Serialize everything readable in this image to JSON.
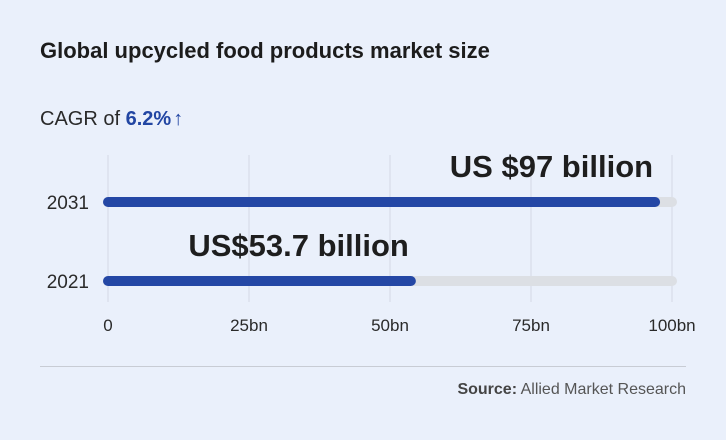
{
  "title": "Global upcycled food products market size",
  "cagr": {
    "prefix": "CAGR of",
    "value": "6.2%",
    "arrow": "↑"
  },
  "source": {
    "label": "Source:",
    "text": "Allied Market Research"
  },
  "colors": {
    "bar": "#2447a5",
    "track": "#dcdfe4",
    "grid": "#d4d9e6",
    "accent": "#2246a3"
  },
  "chart_data": {
    "type": "bar",
    "orientation": "horizontal",
    "categories": [
      "2031",
      "2021"
    ],
    "values": [
      97,
      53.7
    ],
    "value_labels": [
      "US $97 billion",
      "US$53.7 billion"
    ],
    "xlim": [
      0,
      100
    ],
    "xticks": [
      0,
      25,
      50,
      75,
      100
    ],
    "xtick_labels": [
      "0",
      "25bn",
      "50bn",
      "75bn",
      "100bn"
    ],
    "grid": true
  }
}
